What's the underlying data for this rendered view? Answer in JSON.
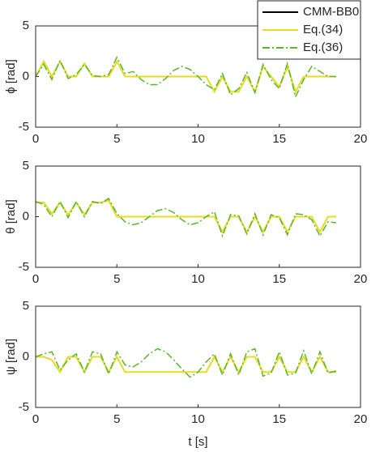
{
  "chart_data": [
    {
      "type": "line",
      "ylabel": "ϕ [rad]",
      "x": [
        0,
        0.5,
        1,
        1.5,
        2,
        2.5,
        3,
        3.5,
        4,
        4.5,
        5,
        5.5,
        6,
        6.5,
        7,
        7.5,
        8,
        8.5,
        9,
        9.5,
        10,
        10.5,
        11,
        11.5,
        12,
        12.5,
        13,
        13.5,
        14,
        14.5,
        15,
        15.5,
        16,
        16.5,
        17,
        17.5,
        18,
        18.5
      ],
      "xlim": [
        0,
        20
      ],
      "ylim": [
        -5,
        5
      ],
      "xticks": [
        0,
        5,
        10,
        15,
        20
      ],
      "yticks": [
        -5,
        0,
        5
      ],
      "legend": "upper right",
      "series": [
        {
          "name": "CMM-BB0",
          "color": "#000000",
          "dash": "none",
          "values": [
            0,
            1.5,
            0,
            1.5,
            0,
            0,
            1.3,
            0,
            0,
            0,
            1.5,
            0,
            0,
            0,
            0,
            0,
            0,
            0,
            0,
            0,
            0,
            0,
            -1.5,
            0,
            -1.5,
            -1.5,
            0,
            -1.5,
            1,
            0,
            -1,
            1,
            -1.5,
            0,
            0,
            0,
            0,
            0
          ]
        },
        {
          "name": "Eq.(34)",
          "color": "#e6dd22",
          "dash": "none",
          "values": [
            0,
            1.5,
            0,
            1.5,
            0,
            0,
            1.3,
            0,
            0,
            0,
            1.5,
            0,
            0,
            0,
            0,
            0,
            0,
            0,
            0,
            0,
            0,
            0,
            -1.5,
            0,
            -1.5,
            -1.5,
            0,
            -1.5,
            1,
            0,
            -1,
            1,
            -1.5,
            0,
            0,
            0,
            0,
            0
          ]
        },
        {
          "name": "Eq.(36)",
          "color": "#5cb52c",
          "dash": "9 3 2 3",
          "values": [
            0,
            1.2,
            -0.3,
            1.6,
            -0.2,
            0.2,
            1.2,
            0.1,
            0,
            0.2,
            1.9,
            0.3,
            0.5,
            -0.3,
            -0.8,
            -0.8,
            -0.2,
            0.6,
            1,
            0.7,
            0,
            -0.8,
            -1.3,
            0.3,
            -1.8,
            -1.2,
            0.4,
            -1.6,
            1.2,
            -0.3,
            -1.2,
            1.3,
            -2,
            -0.3,
            1,
            0.5,
            0,
            0
          ]
        }
      ]
    },
    {
      "type": "line",
      "ylabel": "θ [rad]",
      "x": [
        0,
        0.5,
        1,
        1.5,
        2,
        2.5,
        3,
        3.5,
        4,
        4.5,
        5,
        5.5,
        6,
        6.5,
        7,
        7.5,
        8,
        8.5,
        9,
        9.5,
        10,
        10.5,
        11,
        11.5,
        12,
        12.5,
        13,
        13.5,
        14,
        14.5,
        15,
        15.5,
        16,
        16.5,
        17,
        17.5,
        18,
        18.5
      ],
      "xlim": [
        0,
        20
      ],
      "ylim": [
        -5,
        5
      ],
      "xticks": [
        0,
        5,
        10,
        15,
        20
      ],
      "yticks": [
        -5,
        0,
        5
      ],
      "series": [
        {
          "color": "#000000",
          "dash": "none",
          "values": [
            1.4,
            1.4,
            0.3,
            1.4,
            0.2,
            1.4,
            0.2,
            1.4,
            1.4,
            1.6,
            0,
            0,
            0,
            0,
            0,
            0,
            0,
            0,
            0,
            0,
            0,
            0,
            0,
            -1.5,
            0,
            0,
            -1.5,
            0,
            -1.5,
            0,
            0,
            -1.5,
            0,
            0,
            0,
            -1.5,
            0,
            0
          ]
        },
        {
          "color": "#e6dd22",
          "dash": "none",
          "values": [
            1.4,
            1.4,
            0.3,
            1.4,
            0.2,
            1.4,
            0.2,
            1.4,
            1.4,
            1.6,
            0,
            0,
            0,
            0,
            0,
            0,
            0,
            0,
            0,
            0,
            0,
            0,
            0,
            -1.5,
            0,
            0,
            -1.5,
            0,
            -1.5,
            0,
            0,
            -1.5,
            0,
            0,
            0,
            -1.5,
            0,
            0
          ]
        },
        {
          "color": "#5cb52c",
          "dash": "9 3 2 3",
          "values": [
            1.5,
            1.2,
            0,
            1.5,
            -0.1,
            1.5,
            0,
            1.5,
            1.3,
            1.8,
            0.3,
            -0.5,
            -0.8,
            -0.6,
            0,
            0.6,
            0.8,
            0.4,
            -0.3,
            -0.8,
            -0.6,
            0,
            0.5,
            -1.9,
            0.2,
            0.1,
            -1.7,
            0.3,
            -1.8,
            0.2,
            -0.1,
            -1.8,
            0.3,
            0.2,
            -0.3,
            -1.9,
            -0.5,
            -0.6
          ]
        }
      ]
    },
    {
      "type": "line",
      "ylabel": "ψ [rad]",
      "xlabel": "t [s]",
      "x": [
        0,
        0.5,
        1,
        1.5,
        2,
        2.5,
        3,
        3.5,
        4,
        4.5,
        5,
        5.5,
        6,
        6.5,
        7,
        7.5,
        8,
        8.5,
        9,
        9.5,
        10,
        10.5,
        11,
        11.5,
        12,
        12.5,
        13,
        13.5,
        14,
        14.5,
        15,
        15.5,
        16,
        16.5,
        17,
        17.5,
        18,
        18.5
      ],
      "xlim": [
        0,
        20
      ],
      "ylim": [
        -5,
        5
      ],
      "xticks": [
        0,
        5,
        10,
        15,
        20
      ],
      "yticks": [
        -5,
        0,
        5
      ],
      "series": [
        {
          "color": "#000000",
          "dash": "none",
          "values": [
            0,
            0,
            -0.3,
            -1.5,
            0,
            0,
            -1.5,
            0,
            0,
            -1.5,
            0,
            -1.5,
            -1.5,
            -1.5,
            -1.5,
            -1.5,
            -1.5,
            -1.5,
            -1.5,
            -1.5,
            -1.5,
            -1.5,
            0,
            -1.5,
            0,
            -1.5,
            0,
            0,
            -1.5,
            -1.5,
            0,
            -1.5,
            -1.5,
            0,
            -1.5,
            0,
            -1.5,
            -1.5
          ]
        },
        {
          "color": "#e6dd22",
          "dash": "none",
          "values": [
            0,
            0,
            -0.3,
            -1.5,
            0,
            0,
            -1.5,
            0,
            0,
            -1.5,
            0,
            -1.5,
            -1.5,
            -1.5,
            -1.5,
            -1.5,
            -1.5,
            -1.5,
            -1.5,
            -1.5,
            -1.5,
            -1.5,
            0,
            -1.5,
            0,
            -1.5,
            0,
            0,
            -1.5,
            -1.5,
            0,
            -1.5,
            -1.5,
            0,
            -1.5,
            0,
            -1.5,
            -1.5
          ]
        },
        {
          "color": "#5cb52c",
          "dash": "9 3 2 3",
          "values": [
            0,
            0.3,
            0.5,
            -1.3,
            -0.3,
            0.3,
            -1.5,
            0.5,
            0.3,
            -1.7,
            0.5,
            -0.8,
            -1,
            -0.5,
            0.3,
            0.8,
            0.5,
            -0.3,
            -1.2,
            -2,
            -1.5,
            -0.5,
            0.3,
            -1.8,
            0.3,
            -1.8,
            0.5,
            0.8,
            -1.9,
            -1.6,
            0.5,
            -1.8,
            -1.6,
            0.6,
            -1.7,
            0.5,
            -1.6,
            -1.4
          ]
        }
      ]
    }
  ]
}
